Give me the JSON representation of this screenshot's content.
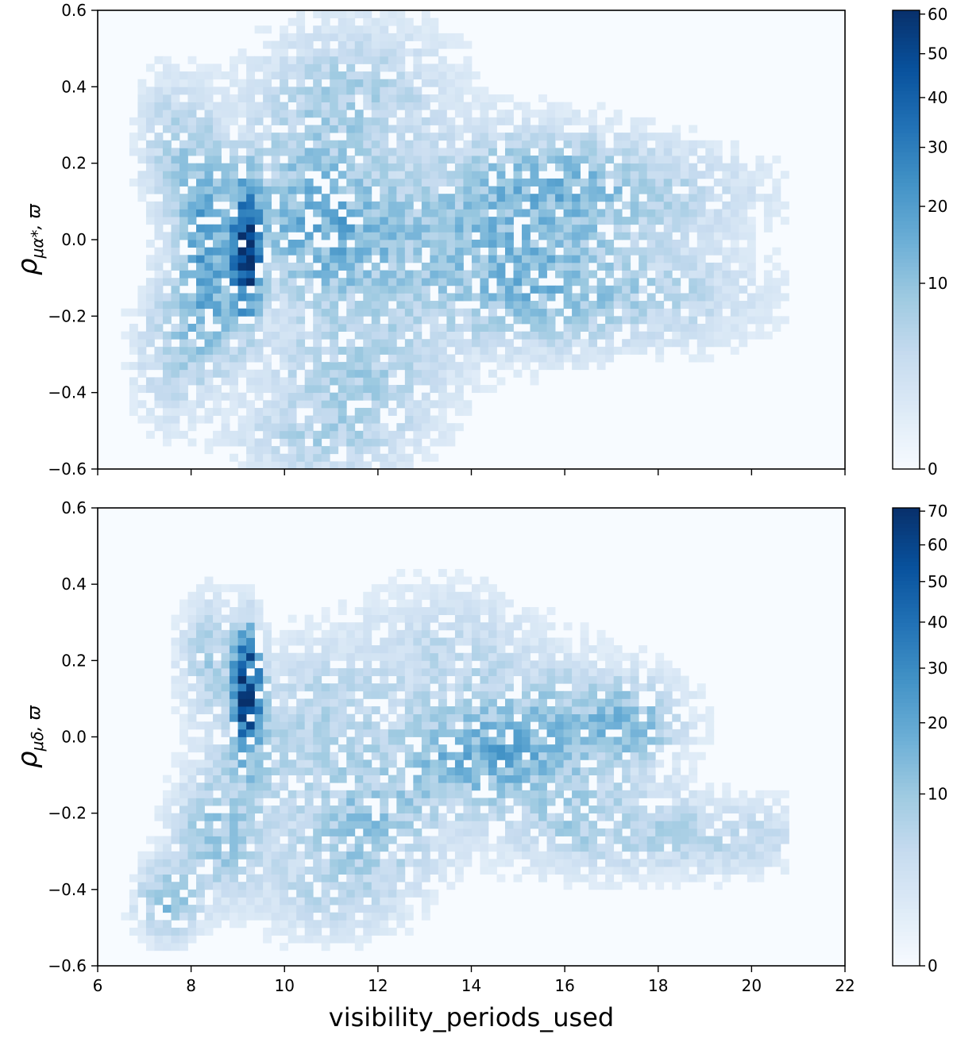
{
  "chart_data": [
    {
      "type": "heatmap",
      "panel": "top",
      "ylabel": {
        "base": "ρ",
        "sub": "μα*",
        "rest": ", ϖ"
      },
      "xlabel": "",
      "xlim": [
        6,
        22
      ],
      "ylim": [
        -0.6,
        0.6
      ],
      "xticks": [
        6,
        8,
        10,
        12,
        14,
        16,
        18,
        20,
        22
      ],
      "yticks": [
        -0.6,
        -0.4,
        -0.2,
        0.0,
        0.2,
        0.4,
        0.6
      ],
      "ytick_labels": [
        "−0.6",
        "−0.4",
        "−0.2",
        "0.0",
        "0.2",
        "0.4",
        "0.6"
      ],
      "xtick_labels_shown": false,
      "colormap": "Blues",
      "colorbar": {
        "max": 61,
        "ticks": [
          0,
          10,
          20,
          30,
          40,
          50,
          60
        ],
        "tick_labels": [
          "0",
          "10",
          "20",
          "30",
          "40",
          "50",
          "60"
        ],
        "scale": "sqrt"
      },
      "bins": {
        "x": 80,
        "y": 60
      },
      "density_components": [
        {
          "x": 9.2,
          "y": -0.02,
          "sx": 0.18,
          "sy": 0.1,
          "peak": 60
        },
        {
          "x": 8.3,
          "y": 0.05,
          "sx": 0.4,
          "sy": 0.15,
          "peak": 14
        },
        {
          "x": 8.5,
          "y": -0.15,
          "sx": 0.45,
          "sy": 0.12,
          "peak": 10
        },
        {
          "x": 7.5,
          "y": 0.25,
          "sx": 0.4,
          "sy": 0.12,
          "peak": 5
        },
        {
          "x": 7.6,
          "y": -0.28,
          "sx": 0.5,
          "sy": 0.12,
          "peak": 6
        },
        {
          "x": 10.5,
          "y": 0.1,
          "sx": 0.9,
          "sy": 0.14,
          "peak": 9
        },
        {
          "x": 11.2,
          "y": 0.0,
          "sx": 1.0,
          "sy": 0.1,
          "peak": 9
        },
        {
          "x": 11.5,
          "y": -0.35,
          "sx": 1.2,
          "sy": 0.14,
          "peak": 7
        },
        {
          "x": 11.5,
          "y": 0.38,
          "sx": 1.3,
          "sy": 0.12,
          "peak": 6
        },
        {
          "x": 10.5,
          "y": -0.52,
          "sx": 1.0,
          "sy": 0.06,
          "peak": 4
        },
        {
          "x": 13.8,
          "y": 0.0,
          "sx": 1.4,
          "sy": 0.14,
          "peak": 7
        },
        {
          "x": 15.8,
          "y": 0.14,
          "sx": 1.3,
          "sy": 0.09,
          "peak": 11
        },
        {
          "x": 15.6,
          "y": -0.12,
          "sx": 1.4,
          "sy": 0.1,
          "peak": 10
        },
        {
          "x": 18.5,
          "y": 0.12,
          "sx": 1.3,
          "sy": 0.08,
          "peak": 4
        },
        {
          "x": 18.5,
          "y": -0.15,
          "sx": 1.3,
          "sy": 0.08,
          "peak": 4
        }
      ],
      "extent": {
        "x": [
          6.5,
          20.8
        ],
        "y": [
          -0.6,
          0.6
        ]
      }
    },
    {
      "type": "heatmap",
      "panel": "bottom",
      "ylabel": {
        "base": "ρ",
        "sub": "μδ",
        "rest": ", ϖ"
      },
      "xlabel": "visibility_periods_used",
      "xlim": [
        6,
        22
      ],
      "ylim": [
        -0.6,
        0.6
      ],
      "xticks": [
        6,
        8,
        10,
        12,
        14,
        16,
        18,
        20,
        22
      ],
      "xtick_labels": [
        "6",
        "8",
        "10",
        "12",
        "14",
        "16",
        "18",
        "20",
        "22"
      ],
      "yticks": [
        -0.6,
        -0.4,
        -0.2,
        0.0,
        0.2,
        0.4,
        0.6
      ],
      "ytick_labels": [
        "−0.6",
        "−0.4",
        "−0.2",
        "0.0",
        "0.2",
        "0.4",
        "0.6"
      ],
      "xtick_labels_shown": true,
      "colormap": "Blues",
      "colorbar": {
        "max": 71,
        "ticks": [
          0,
          10,
          20,
          30,
          40,
          50,
          60,
          70
        ],
        "tick_labels": [
          "0",
          "10",
          "20",
          "30",
          "40",
          "50",
          "60",
          "70"
        ],
        "scale": "sqrt"
      },
      "bins": {
        "x": 80,
        "y": 60
      },
      "density_components": [
        {
          "x": 9.2,
          "y": 0.12,
          "sx": 0.18,
          "sy": 0.09,
          "peak": 70
        },
        {
          "x": 8.4,
          "y": 0.2,
          "sx": 0.4,
          "sy": 0.1,
          "peak": 8
        },
        {
          "x": 9.3,
          "y": -0.05,
          "sx": 0.5,
          "sy": 0.08,
          "peak": 6
        },
        {
          "x": 8.6,
          "y": -0.25,
          "sx": 0.6,
          "sy": 0.1,
          "peak": 11
        },
        {
          "x": 7.5,
          "y": -0.43,
          "sx": 0.4,
          "sy": 0.06,
          "peak": 12
        },
        {
          "x": 10.8,
          "y": 0.05,
          "sx": 1.0,
          "sy": 0.12,
          "peak": 6
        },
        {
          "x": 11.8,
          "y": -0.22,
          "sx": 1.1,
          "sy": 0.1,
          "peak": 10
        },
        {
          "x": 11.0,
          "y": -0.4,
          "sx": 1.0,
          "sy": 0.08,
          "peak": 5
        },
        {
          "x": 14.3,
          "y": -0.05,
          "sx": 1.2,
          "sy": 0.08,
          "peak": 16
        },
        {
          "x": 13.5,
          "y": 0.2,
          "sx": 1.3,
          "sy": 0.12,
          "peak": 5
        },
        {
          "x": 16.3,
          "y": 0.05,
          "sx": 1.2,
          "sy": 0.09,
          "peak": 9
        },
        {
          "x": 16.5,
          "y": -0.22,
          "sx": 1.2,
          "sy": 0.08,
          "peak": 8
        },
        {
          "x": 17.5,
          "y": 0.03,
          "sx": 0.6,
          "sy": 0.06,
          "peak": 8
        },
        {
          "x": 19.3,
          "y": -0.26,
          "sx": 1.2,
          "sy": 0.06,
          "peak": 6
        }
      ],
      "extent": {
        "x": [
          6.5,
          20.8
        ],
        "y": [
          -0.6,
          0.6
        ]
      }
    }
  ]
}
